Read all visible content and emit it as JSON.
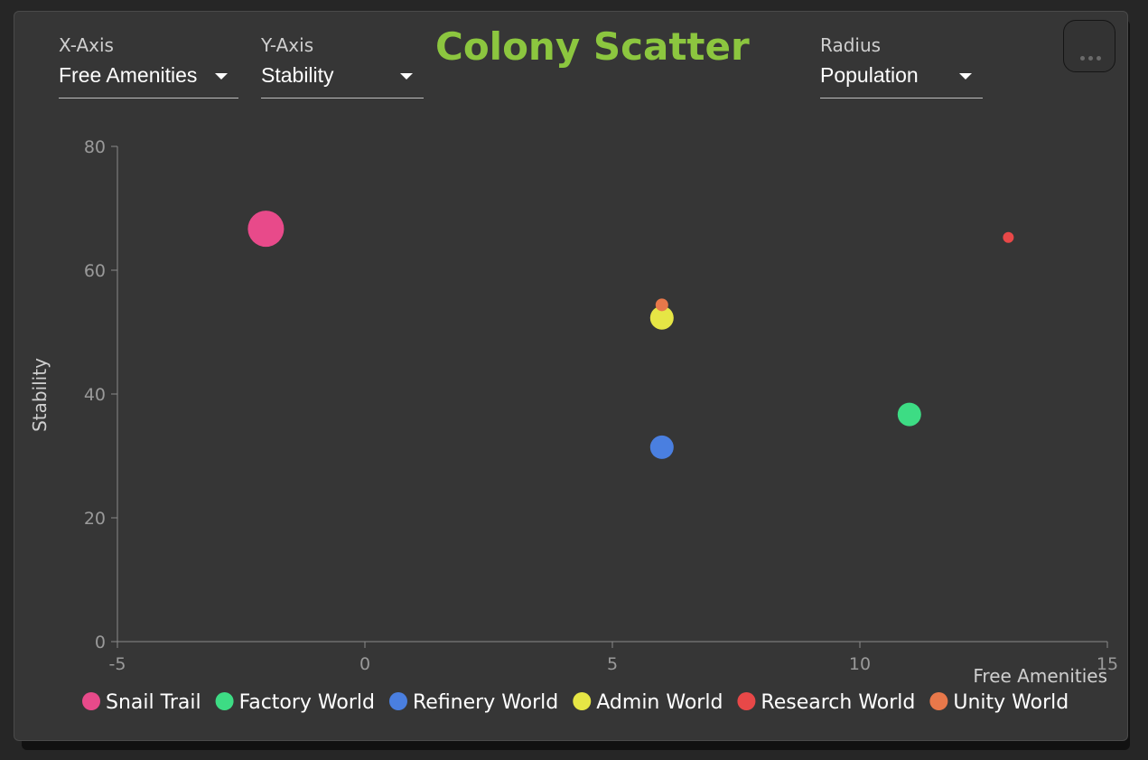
{
  "controls": {
    "x_axis": {
      "label": "X-Axis",
      "value": "Free Amenities"
    },
    "y_axis": {
      "label": "Y-Axis",
      "value": "Stability"
    },
    "radius": {
      "label": "Radius",
      "value": "Population"
    },
    "menu_icon": "more-horizontal-icon"
  },
  "chart_data": {
    "type": "scatter",
    "title": "Colony Scatter",
    "xlabel": "Free Amenities",
    "ylabel": "Stability",
    "xlim": [
      -5,
      15
    ],
    "ylim": [
      0,
      80
    ],
    "x_ticks": [
      -5,
      0,
      5,
      10,
      15
    ],
    "y_ticks": [
      0,
      20,
      40,
      60,
      80
    ],
    "grid": false,
    "legend_position": "bottom",
    "series": [
      {
        "name": "Snail Trail",
        "color": "#e84a8a",
        "points": [
          {
            "x": -2,
            "y": 66.7,
            "size": 20
          }
        ]
      },
      {
        "name": "Factory World",
        "color": "#3ddc84",
        "points": [
          {
            "x": 11,
            "y": 36.7,
            "size": 13
          }
        ]
      },
      {
        "name": "Refinery World",
        "color": "#4a7fe0",
        "points": [
          {
            "x": 6,
            "y": 31.4,
            "size": 13
          }
        ]
      },
      {
        "name": "Admin World",
        "color": "#e6e645",
        "points": [
          {
            "x": 6,
            "y": 52.3,
            "size": 13
          }
        ]
      },
      {
        "name": "Research World",
        "color": "#e84848",
        "points": [
          {
            "x": 13,
            "y": 65.3,
            "size": 6
          }
        ]
      },
      {
        "name": "Unity World",
        "color": "#e8784a",
        "points": [
          {
            "x": 6,
            "y": 54.4,
            "size": 7
          }
        ]
      }
    ]
  }
}
